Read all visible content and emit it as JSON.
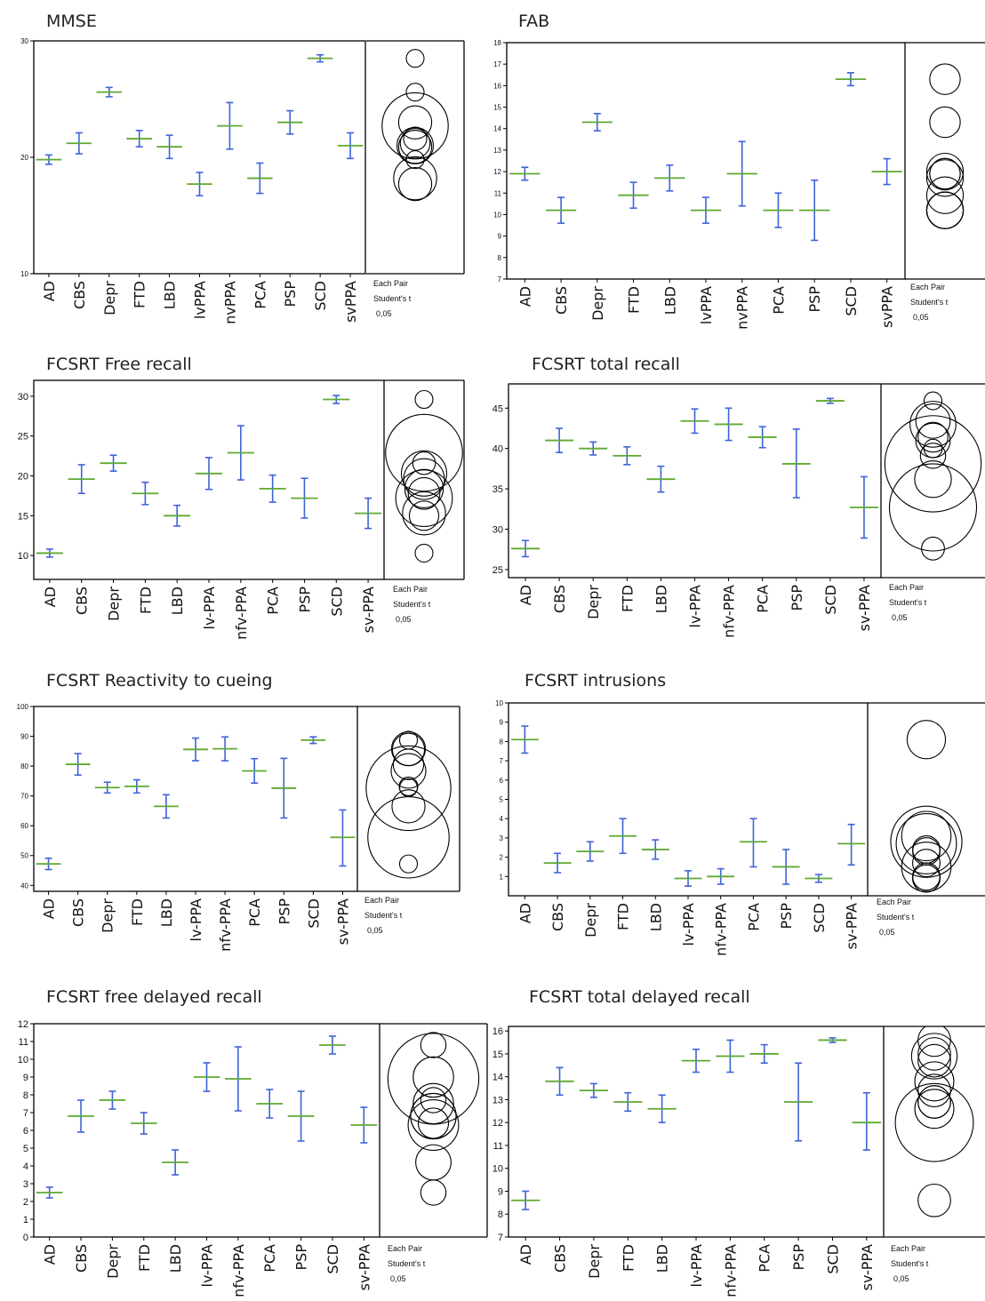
{
  "colors": {
    "mean": "#5fa832",
    "error": "#3d63d8",
    "frame": "#000000",
    "circle": "#000000"
  },
  "legend_text": {
    "line1": "Each Pair",
    "line2": "Student's t",
    "line3": "0,05"
  },
  "chart_data": [
    {
      "type": "scatter",
      "title": "MMSE",
      "categories": [
        "AD",
        "CBS",
        "Depr",
        "FTD",
        "LBD",
        "lvPPA",
        "nvPPA",
        "PCA",
        "PSP",
        "SCD",
        "svPPA"
      ],
      "ylim": [
        10,
        30
      ],
      "yticks": [
        10,
        20,
        30
      ],
      "mean": [
        19.8,
        21.2,
        25.6,
        21.6,
        20.9,
        17.7,
        22.7,
        18.2,
        23.0,
        28.5,
        21.0
      ],
      "lower": [
        19.4,
        20.3,
        25.2,
        20.9,
        19.9,
        16.7,
        20.7,
        16.9,
        22.0,
        28.2,
        19.9
      ],
      "upper": [
        20.2,
        22.1,
        26.0,
        22.3,
        21.9,
        18.7,
        24.7,
        19.5,
        24.0,
        28.8,
        22.1
      ],
      "comparison_circles": [
        28.5,
        25.6,
        23.0,
        22.7,
        21.6,
        21.2,
        21.0,
        20.9,
        19.8,
        18.2,
        17.7
      ],
      "grid": false
    },
    {
      "type": "scatter",
      "title": "FAB",
      "categories": [
        "AD",
        "CBS",
        "Depr",
        "FTD",
        "LBD",
        "lvPPA",
        "nvPPA",
        "PCA",
        "PSP",
        "SCD",
        "svPPA"
      ],
      "ylim": [
        7,
        18
      ],
      "yticks": [
        7,
        8,
        9,
        10,
        11,
        12,
        13,
        14,
        15,
        16,
        17,
        18
      ],
      "mean": [
        11.9,
        10.2,
        14.3,
        10.9,
        11.7,
        10.2,
        11.9,
        10.2,
        10.2,
        16.3,
        12.0
      ],
      "lower": [
        11.6,
        9.6,
        13.9,
        10.3,
        11.1,
        9.6,
        10.4,
        9.4,
        8.8,
        16.0,
        11.4
      ],
      "upper": [
        12.2,
        10.8,
        14.7,
        11.5,
        12.3,
        10.8,
        13.4,
        11.0,
        11.6,
        16.6,
        12.6
      ],
      "comparison_circles": [
        16.3,
        14.3,
        12.0,
        11.9,
        11.9,
        11.7,
        10.9,
        10.2,
        10.2,
        10.2,
        10.2
      ],
      "grid": false
    },
    {
      "type": "scatter",
      "title": "FCSRT Free recall",
      "categories": [
        "AD",
        "CBS",
        "Depr",
        "FTD",
        "LBD",
        "lv-PPA",
        "nfv-PPA",
        "PCA",
        "PSP",
        "SCD",
        "sv-PPA"
      ],
      "ylim": [
        7,
        32
      ],
      "yticks": [
        10,
        15,
        20,
        25,
        30
      ],
      "mean": [
        10.3,
        19.6,
        21.6,
        17.8,
        15.0,
        20.3,
        22.9,
        18.4,
        17.2,
        29.6,
        15.3
      ],
      "lower": [
        9.8,
        17.8,
        20.6,
        16.4,
        13.7,
        18.3,
        19.5,
        16.7,
        14.7,
        29.1,
        13.4
      ],
      "upper": [
        10.8,
        21.4,
        22.6,
        19.2,
        16.3,
        22.3,
        26.3,
        20.1,
        19.7,
        30.1,
        17.2
      ],
      "comparison_circles": [
        29.6,
        22.9,
        21.6,
        20.3,
        19.6,
        18.4,
        17.8,
        17.2,
        15.3,
        15.0,
        10.3
      ],
      "grid": false
    },
    {
      "type": "scatter",
      "title": "FCSRT total recall",
      "categories": [
        "AD",
        "CBS",
        "Depr",
        "FTD",
        "LBD",
        "lv-PPA",
        "nfv-PPA",
        "PCA",
        "PSP",
        "SCD",
        "sv-PPA"
      ],
      "ylim": [
        24,
        48
      ],
      "yticks": [
        25,
        30,
        35,
        40,
        45
      ],
      "mean": [
        27.6,
        41.0,
        40.0,
        39.1,
        36.2,
        43.4,
        43.0,
        41.4,
        38.1,
        45.9,
        32.7
      ],
      "lower": [
        26.6,
        39.5,
        39.2,
        38.0,
        34.6,
        41.9,
        41.0,
        40.1,
        33.9,
        45.6,
        28.9
      ],
      "upper": [
        28.6,
        42.5,
        40.8,
        40.2,
        37.8,
        44.9,
        45.0,
        42.7,
        42.4,
        46.2,
        36.5
      ],
      "comparison_circles": [
        45.9,
        43.4,
        43.0,
        41.4,
        41.0,
        40.0,
        39.1,
        38.1,
        36.2,
        32.7,
        27.6
      ],
      "grid": false
    },
    {
      "type": "scatter",
      "title": "FCSRT Reactivity to cueing",
      "categories": [
        "AD",
        "CBS",
        "Depr",
        "FTD",
        "LBD",
        "lv-PPA",
        "nfv-PPA",
        "PCA",
        "PSP",
        "SCD",
        "sv-PPA"
      ],
      "ylim": [
        38,
        100
      ],
      "yticks": [
        40,
        50,
        60,
        70,
        80,
        90,
        100
      ],
      "mean": [
        47.2,
        80.6,
        72.8,
        73.2,
        66.5,
        85.6,
        85.8,
        78.4,
        72.6,
        88.7,
        56.1
      ],
      "lower": [
        45.3,
        77.0,
        71.0,
        71.0,
        62.6,
        81.8,
        81.8,
        74.3,
        62.6,
        87.6,
        46.5
      ],
      "upper": [
        49.1,
        84.2,
        74.6,
        75.4,
        70.4,
        89.4,
        89.8,
        82.5,
        82.6,
        89.8,
        65.3
      ],
      "comparison_circles": [
        88.7,
        85.8,
        85.6,
        80.6,
        78.4,
        73.2,
        72.8,
        72.6,
        66.5,
        56.1,
        47.2
      ],
      "grid": false
    },
    {
      "type": "scatter",
      "title": "FCSRT intrusions",
      "categories": [
        "AD",
        "CBS",
        "Depr",
        "FTD",
        "LBD",
        "lv-PPA",
        "nfv-PPA",
        "PCA",
        "PSP",
        "SCD",
        "sv-PPA"
      ],
      "ylim": [
        0,
        10
      ],
      "yticks": [
        1,
        2,
        3,
        4,
        5,
        6,
        7,
        8,
        9,
        10
      ],
      "mean": [
        8.1,
        1.7,
        2.3,
        3.1,
        2.4,
        0.9,
        1.0,
        2.8,
        1.5,
        0.9,
        2.7
      ],
      "lower": [
        7.4,
        1.2,
        1.8,
        2.2,
        1.9,
        0.5,
        0.6,
        1.5,
        0.6,
        0.7,
        1.6
      ],
      "upper": [
        8.8,
        2.2,
        2.8,
        4.0,
        2.9,
        1.3,
        1.4,
        4.0,
        2.4,
        1.1,
        3.7
      ],
      "comparison_circles": [
        8.1,
        3.1,
        2.8,
        2.7,
        2.4,
        2.3,
        1.7,
        1.5,
        1.0,
        0.9,
        0.9
      ],
      "grid": false
    },
    {
      "type": "scatter",
      "title": "FCSRT free delayed recall",
      "categories": [
        "AD",
        "CBS",
        "Depr",
        "FTD",
        "LBD",
        "lv-PPA",
        "nfv-PPA",
        "PCA",
        "PSP",
        "SCD",
        "sv-PPA"
      ],
      "ylim": [
        0,
        12
      ],
      "yticks": [
        0,
        1,
        2,
        3,
        4,
        5,
        6,
        7,
        8,
        9,
        10,
        11,
        12
      ],
      "mean": [
        2.5,
        6.8,
        7.7,
        6.4,
        4.2,
        9.0,
        8.9,
        7.5,
        6.8,
        10.8,
        6.3
      ],
      "lower": [
        2.2,
        5.9,
        7.2,
        5.8,
        3.5,
        8.2,
        7.1,
        6.7,
        5.4,
        10.3,
        5.3
      ],
      "upper": [
        2.8,
        7.7,
        8.2,
        7.0,
        4.9,
        9.8,
        10.7,
        8.3,
        8.2,
        11.3,
        7.3
      ],
      "comparison_circles": [
        10.8,
        9.0,
        8.9,
        7.7,
        7.5,
        6.8,
        6.8,
        6.4,
        6.3,
        4.2,
        2.5
      ],
      "grid": false
    },
    {
      "type": "scatter",
      "title": "FCSRT total delayed recall",
      "categories": [
        "AD",
        "CBS",
        "Depr",
        "FTD",
        "LBD",
        "lv-PPA",
        "nfv-PPA",
        "PCA",
        "PSP",
        "SCD",
        "sv-PPA"
      ],
      "ylim": [
        7,
        16.2
      ],
      "yticks": [
        7,
        8,
        9,
        10,
        11,
        12,
        13,
        14,
        15,
        16
      ],
      "mean": [
        8.6,
        13.8,
        13.4,
        12.9,
        12.6,
        14.7,
        14.9,
        15.0,
        12.9,
        15.6,
        12.0
      ],
      "lower": [
        8.2,
        13.2,
        13.1,
        12.5,
        12.0,
        14.2,
        14.2,
        14.6,
        11.2,
        15.5,
        10.8
      ],
      "upper": [
        9.0,
        14.4,
        13.7,
        13.3,
        13.2,
        15.2,
        15.6,
        15.4,
        14.6,
        15.7,
        13.3
      ],
      "comparison_circles": [
        15.6,
        15.0,
        14.9,
        14.7,
        13.8,
        13.4,
        12.9,
        12.9,
        12.6,
        12.0,
        8.6
      ],
      "grid": false
    }
  ]
}
